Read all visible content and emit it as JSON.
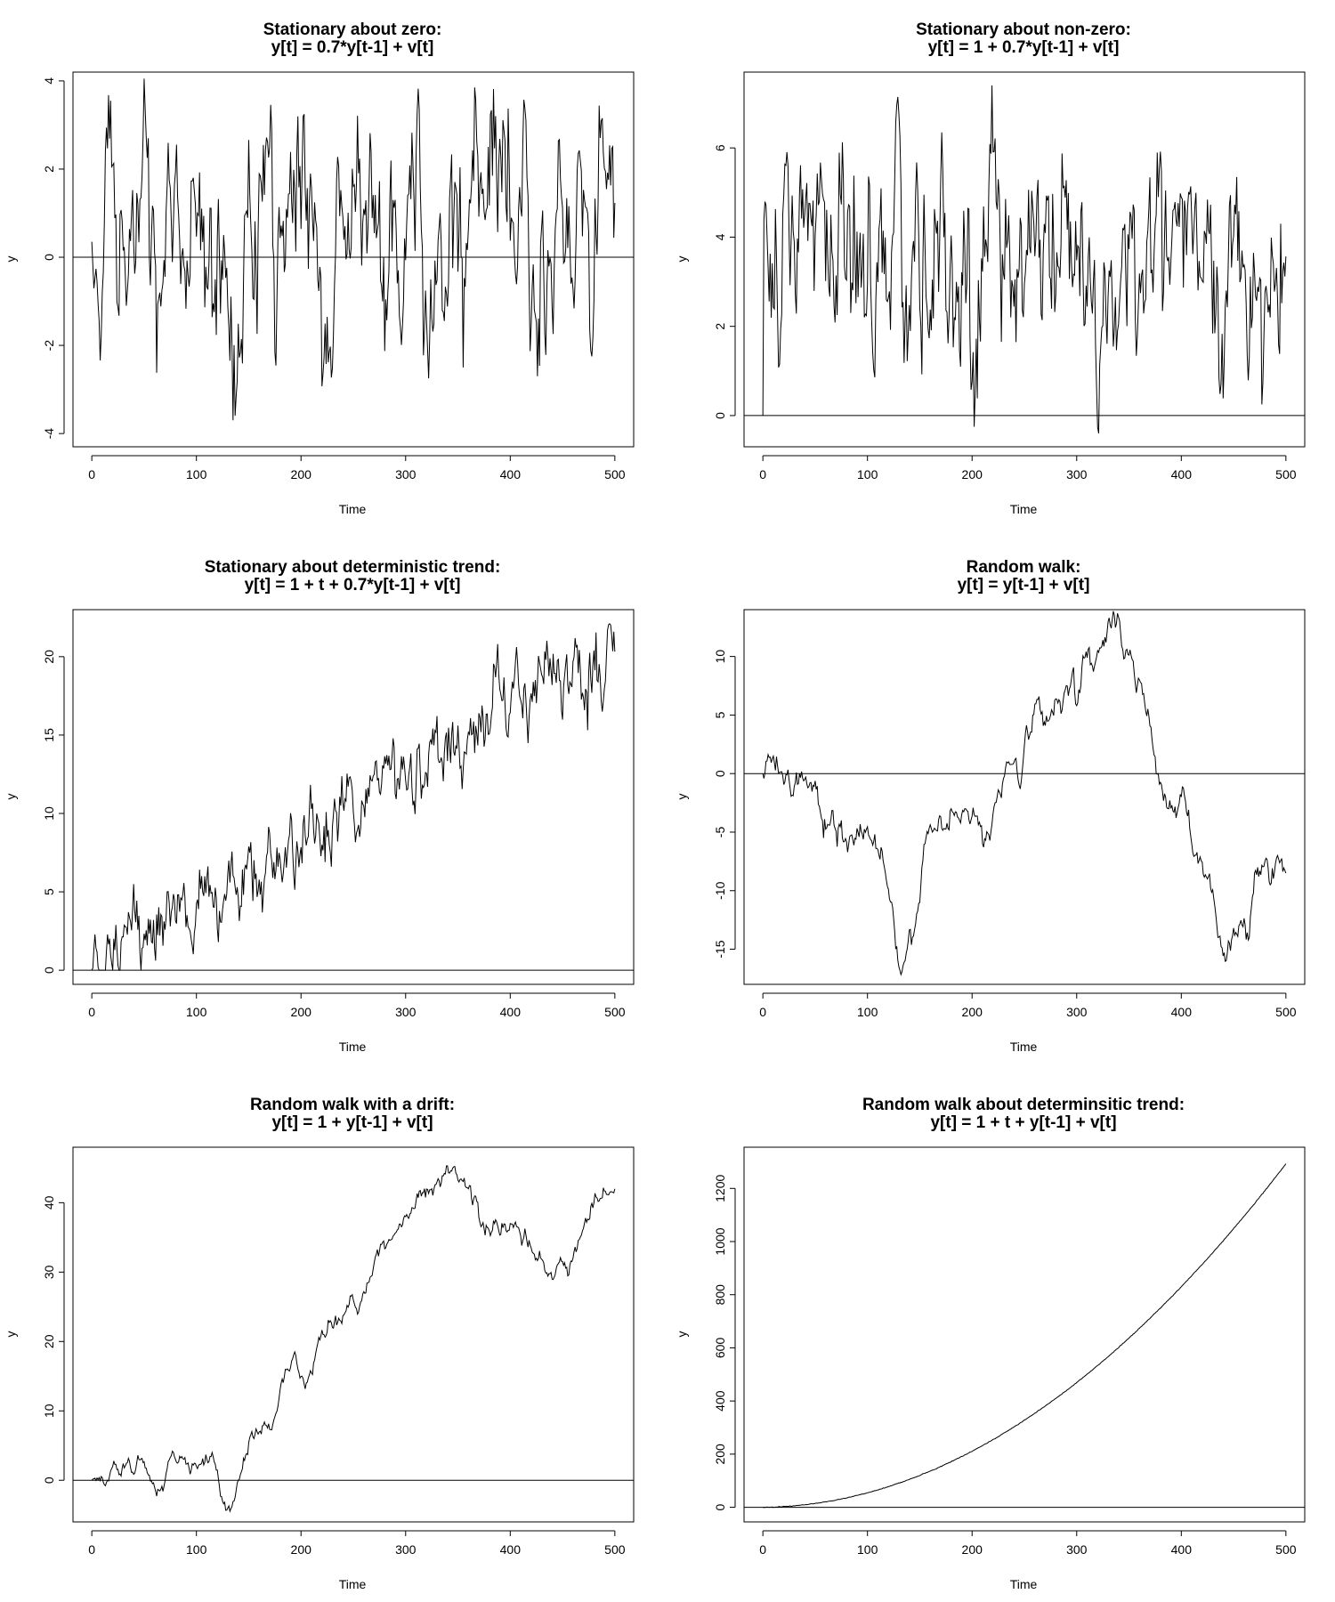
{
  "chart_data": [
    {
      "type": "line",
      "title": [
        "Stationary about zero:",
        "y[t] = 0.7*y[t-1] + v[t]"
      ],
      "xlabel": "Time",
      "ylabel": "y",
      "xlim": [
        -18,
        518
      ],
      "ylim": [
        -4.3,
        4.2
      ],
      "xticks": [
        0,
        100,
        200,
        300,
        400,
        500
      ],
      "yticks": [
        -4,
        -2,
        0,
        2,
        4
      ],
      "hline": 0,
      "series": [
        {
          "process": "ar_zero",
          "n": 500,
          "phi": 0.7,
          "const": 0,
          "range": [
            -3.7,
            4.05
          ]
        }
      ]
    },
    {
      "type": "line",
      "title": [
        "Stationary about non-zero:",
        "y[t] = 1 + 0.7*y[t-1] + v[t]"
      ],
      "xlabel": "Time",
      "ylabel": "y",
      "xlim": [
        -18,
        518
      ],
      "ylim": [
        -0.7,
        7.7
      ],
      "xticks": [
        0,
        100,
        200,
        300,
        400,
        500
      ],
      "yticks": [
        0,
        2,
        4,
        6
      ],
      "hline": 0,
      "series": [
        {
          "process": "ar_const",
          "n": 500,
          "phi": 0.7,
          "const": 1,
          "range": [
            -0.4,
            7.4
          ]
        }
      ]
    },
    {
      "type": "line",
      "title": [
        "Stationary about deterministic trend:",
        "y[t] = 1 + t + 0.7*y[t-1] + v[t]"
      ],
      "xlabel": "Time",
      "ylabel": "y",
      "xlim": [
        -18,
        518
      ],
      "ylim": [
        -0.9,
        23
      ],
      "xticks": [
        0,
        100,
        200,
        300,
        400,
        500
      ],
      "yticks": [
        0,
        5,
        10,
        15,
        20
      ],
      "hline": 0,
      "series": [
        {
          "process": "ar_trend",
          "n": 500,
          "start": 0,
          "end": 20.5,
          "range": [
            0,
            22.1
          ]
        }
      ]
    },
    {
      "type": "line",
      "title": [
        "Random walk:",
        "y[t] = y[t-1] + v[t]"
      ],
      "xlabel": "Time",
      "ylabel": "y",
      "xlim": [
        -18,
        518
      ],
      "ylim": [
        -18,
        14
      ],
      "xticks": [
        0,
        100,
        200,
        300,
        400,
        500
      ],
      "yticks": [
        -15,
        -10,
        -5,
        0,
        5,
        10
      ],
      "hline": 0,
      "series": [
        {
          "process": "random_walk",
          "knots": [
            [
              0,
              0
            ],
            [
              10,
              1.5
            ],
            [
              25,
              -0.5
            ],
            [
              48,
              -1
            ],
            [
              58,
              -5.5
            ],
            [
              75,
              -4
            ],
            [
              110,
              -6.5
            ],
            [
              130,
              -16.5
            ],
            [
              150,
              -11
            ],
            [
              180,
              -3
            ],
            [
              210,
              -6
            ],
            [
              235,
              1
            ],
            [
              245,
              -1
            ],
            [
              265,
              5.5
            ],
            [
              290,
              7.5
            ],
            [
              320,
              10.5
            ],
            [
              342,
              12
            ],
            [
              360,
              8
            ],
            [
              378,
              0
            ],
            [
              388,
              -3
            ],
            [
              400,
              -2
            ],
            [
              410,
              -6
            ],
            [
              425,
              -9
            ],
            [
              435,
              -14
            ],
            [
              455,
              -13
            ],
            [
              465,
              -14
            ],
            [
              470,
              -8.5
            ],
            [
              485,
              -9.5
            ],
            [
              492,
              -7
            ],
            [
              500,
              -8.5
            ]
          ]
        }
      ]
    },
    {
      "type": "line",
      "title": [
        "Random walk with a drift:",
        "y[t] = 1 + y[t-1] + v[t]"
      ],
      "xlabel": "Time",
      "ylabel": "y",
      "xlim": [
        -18,
        518
      ],
      "ylim": [
        -6,
        48
      ],
      "xticks": [
        0,
        100,
        200,
        300,
        400,
        500
      ],
      "yticks": [
        0,
        10,
        20,
        30,
        40
      ],
      "hline": 0,
      "series": [
        {
          "process": "random_walk",
          "knots": [
            [
              0,
              0
            ],
            [
              20,
              2
            ],
            [
              45,
              3
            ],
            [
              60,
              -1
            ],
            [
              80,
              3
            ],
            [
              115,
              4
            ],
            [
              125,
              -3
            ],
            [
              130,
              -4
            ],
            [
              155,
              6
            ],
            [
              185,
              16
            ],
            [
              205,
              14
            ],
            [
              230,
              22
            ],
            [
              250,
              26
            ],
            [
              275,
              33
            ],
            [
              300,
              38
            ],
            [
              330,
              43
            ],
            [
              345,
              45
            ],
            [
              360,
              42
            ],
            [
              385,
              37
            ],
            [
              400,
              37
            ],
            [
              425,
              32
            ],
            [
              440,
              29
            ],
            [
              460,
              32
            ],
            [
              480,
              40
            ],
            [
              500,
              42
            ]
          ]
        }
      ]
    },
    {
      "type": "line",
      "title": [
        "Random walk about determinsitic trend:",
        "y[t] = 1 + t + y[t-1] + v[t]"
      ],
      "xlabel": "Time",
      "ylabel": "y",
      "xlim": [
        -18,
        518
      ],
      "ylim": [
        -55,
        1355
      ],
      "xticks": [
        0,
        100,
        200,
        300,
        400,
        500
      ],
      "yticks": [
        0,
        200,
        400,
        600,
        800,
        1000,
        1200
      ],
      "hline": 0,
      "series": [
        {
          "process": "quadratic",
          "n": 500,
          "a": 0.0051,
          "b": 0.035
        }
      ]
    }
  ]
}
